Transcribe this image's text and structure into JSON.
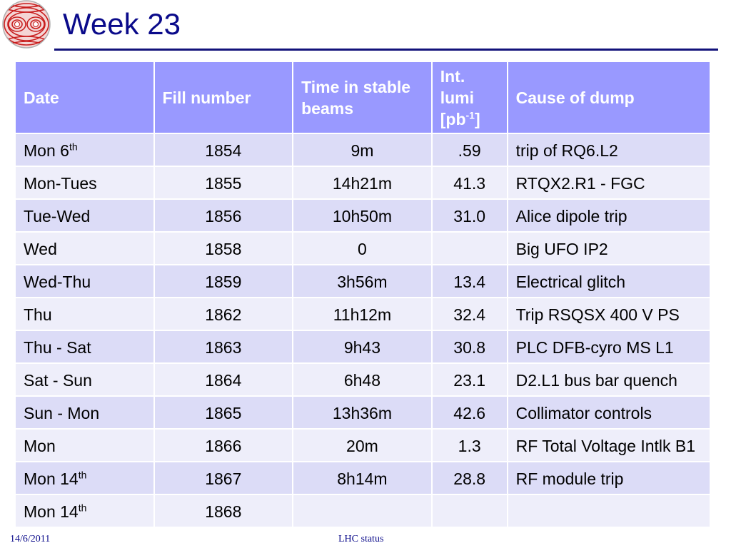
{
  "slide": {
    "title": "Week 23",
    "footer_date": "14/6/2011",
    "footer_center": "LHC status",
    "colors": {
      "title": "#0a0a8a",
      "header_bg": "#9999ff",
      "row_odd": "#dcdcf7",
      "row_even": "#eeeefa"
    },
    "logo_icon": "lhc-dipole-field-logo-icon"
  },
  "table": {
    "headers": {
      "date": "Date",
      "fill": "Fill number",
      "time": "Time in stable beams",
      "lumi_main": "Int. lumi [pb",
      "lumi_sup": "-1",
      "lumi_end": "]",
      "cause": "Cause of dump"
    },
    "rows": [
      {
        "date": "Mon 6",
        "sup": "th",
        "fill": "1854",
        "time": "9m",
        "lumi": ".59",
        "cause": "trip of RQ6.L2"
      },
      {
        "date": "Mon-Tues",
        "sup": "",
        "fill": "1855",
        "time": "14h21m",
        "lumi": "41.3",
        "cause": "RTQX2.R1 - FGC"
      },
      {
        "date": "Tue-Wed",
        "sup": "",
        "fill": "1856",
        "time": "10h50m",
        "lumi": "31.0",
        "cause": "Alice dipole trip"
      },
      {
        "date": "Wed",
        "sup": "",
        "fill": "1858",
        "time": "0",
        "lumi": "",
        "cause": "Big UFO IP2"
      },
      {
        "date": "Wed-Thu",
        "sup": "",
        "fill": "1859",
        "time": "3h56m",
        "lumi": "13.4",
        "cause": "Electrical glitch"
      },
      {
        "date": "Thu",
        "sup": "",
        "fill": "1862",
        "time": "11h12m",
        "lumi": "32.4",
        "cause": "Trip RSQSX 400 V PS"
      },
      {
        "date": "Thu - Sat",
        "sup": "",
        "fill": "1863",
        "time": "9h43",
        "lumi": "30.8",
        "cause": "PLC DFB-cyro MS L1"
      },
      {
        "date": "Sat - Sun",
        "sup": "",
        "fill": "1864",
        "time": "6h48",
        "lumi": "23.1",
        "cause": "D2.L1 bus bar quench"
      },
      {
        "date": "Sun - Mon",
        "sup": "",
        "fill": "1865",
        "time": "13h36m",
        "lumi": "42.6",
        "cause": "Collimator controls"
      },
      {
        "date": "Mon",
        "sup": "",
        "fill": "1866",
        "time": "20m",
        "lumi": "1.3",
        "cause": "RF Total Voltage Intlk B1"
      },
      {
        "date": "Mon 14",
        "sup": "th",
        "fill": "1867",
        "time": "8h14m",
        "lumi": "28.8",
        "cause": "RF module trip"
      },
      {
        "date": "Mon 14",
        "sup": "th",
        "fill": "1868",
        "time": "",
        "lumi": "",
        "cause": ""
      }
    ]
  }
}
